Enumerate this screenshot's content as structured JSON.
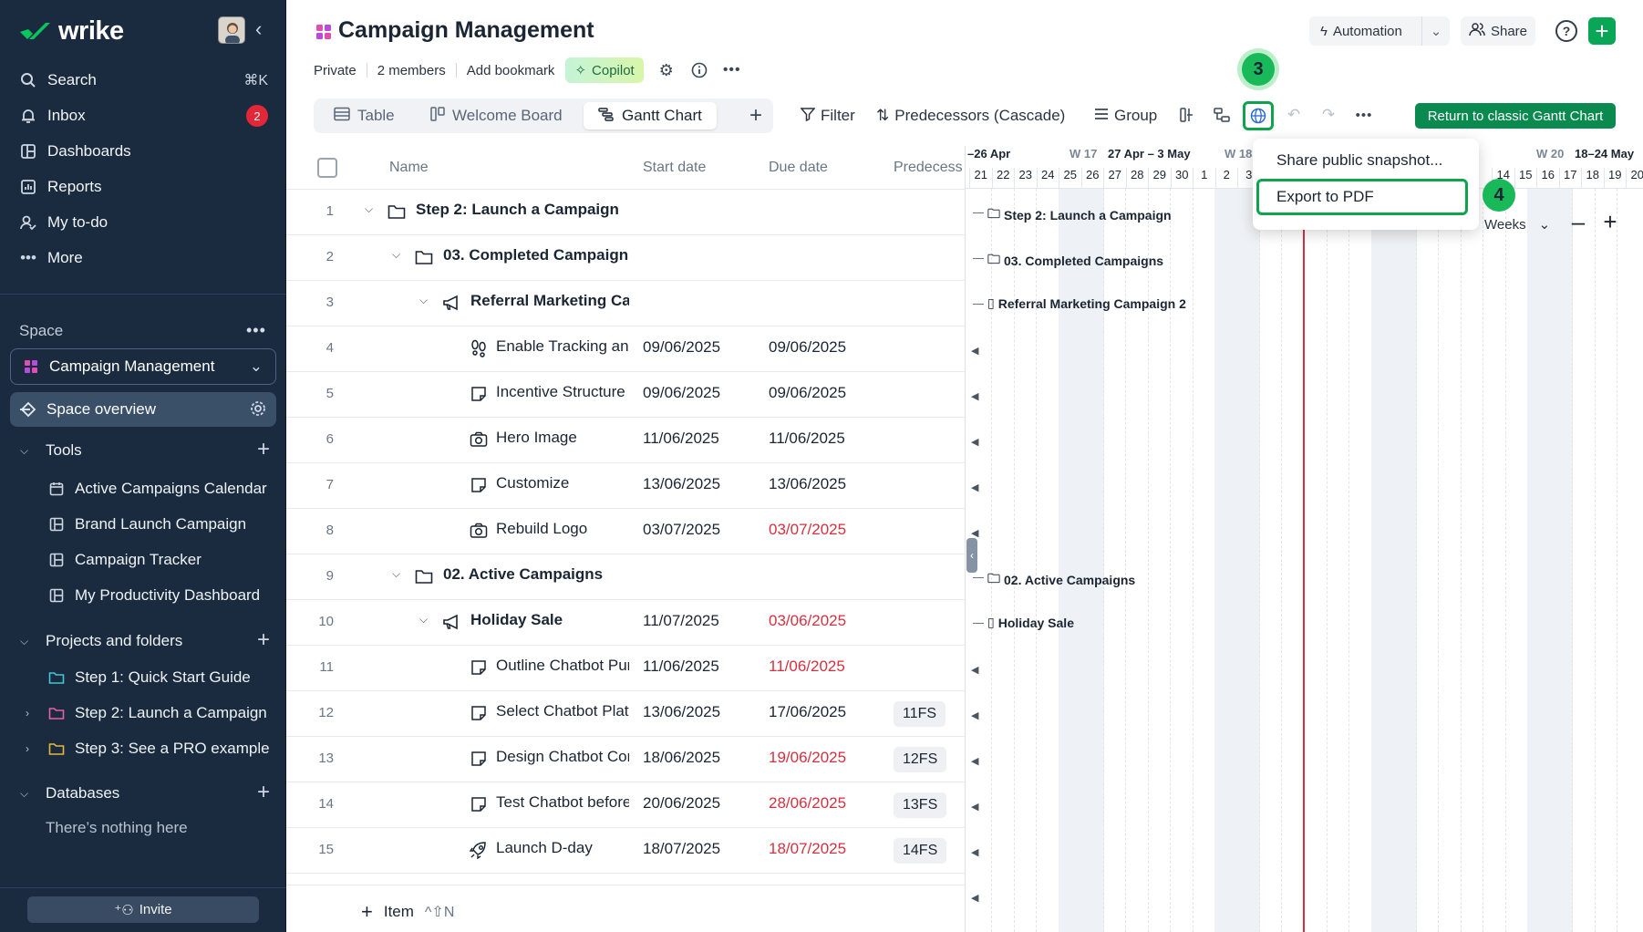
{
  "sidebar": {
    "brand": "wrike",
    "nav": [
      {
        "label": "Search",
        "shortcut": "⌘K"
      },
      {
        "label": "Inbox",
        "badge": "2"
      },
      {
        "label": "Dashboards"
      },
      {
        "label": "Reports"
      },
      {
        "label": "My to-do"
      },
      {
        "label": "More"
      }
    ],
    "space_label": "Space",
    "space_name": "Campaign Management",
    "space_overview": "Space overview",
    "tools_label": "Tools",
    "tools": [
      "Active Campaigns Calendar",
      "Brand Launch Campaign",
      "Campaign Tracker",
      "My Productivity Dashboard"
    ],
    "projects_label": "Projects and folders",
    "projects": [
      "Step 1: Quick Start Guide",
      "Step 2: Launch a Campaign",
      "Step 3: See a PRO example"
    ],
    "databases_label": "Databases",
    "databases_empty": "There’s nothing here",
    "invite": "Invite"
  },
  "header": {
    "title": "Campaign Management",
    "meta": [
      "Private",
      "2 members",
      "Add bookmark"
    ],
    "copilot": "Copilot",
    "automation": "Automation",
    "share": "Share",
    "help": "?"
  },
  "toolbar": {
    "tabs": [
      "Table",
      "Welcome Board",
      "Gantt Chart"
    ],
    "filter": "Filter",
    "predecessors": "Predecessors (Cascade)",
    "group": "Group",
    "classic": "Return to classic Gantt Chart"
  },
  "steps": {
    "three": "3",
    "four": "4"
  },
  "menu": {
    "items": [
      "Share public snapshot...",
      "Export to PDF"
    ]
  },
  "table": {
    "columns": [
      "Name",
      "Start date",
      "Due date",
      "Predecess"
    ],
    "rows": [
      {
        "num": "1",
        "name": "Step 2: Launch a Campaign",
        "start": "",
        "due": "",
        "pred": ""
      },
      {
        "num": "2",
        "name": "03. Completed Campaigns",
        "start": "",
        "due": "",
        "pred": ""
      },
      {
        "num": "3",
        "name": "Referral Marketing Campaign 2",
        "start": "",
        "due": "",
        "pred": ""
      },
      {
        "num": "4",
        "name": "Enable Tracking and Analytics",
        "start": "09/06/2025",
        "due": "09/06/2025",
        "pred": ""
      },
      {
        "num": "5",
        "name": "Incentive Structure",
        "start": "09/06/2025",
        "due": "09/06/2025",
        "pred": ""
      },
      {
        "num": "6",
        "name": "Hero Image",
        "start": "11/06/2025",
        "due": "11/06/2025",
        "pred": ""
      },
      {
        "num": "7",
        "name": "Customize",
        "start": "13/06/2025",
        "due": "13/06/2025",
        "pred": ""
      },
      {
        "num": "8",
        "name": "Rebuild Logo",
        "start": "03/07/2025",
        "due": "03/07/2025",
        "pred": ""
      },
      {
        "num": "9",
        "name": "02. Active Campaigns",
        "start": "",
        "due": "",
        "pred": ""
      },
      {
        "num": "10",
        "name": "Holiday Sale",
        "start": "11/07/2025",
        "due": "03/06/2025",
        "pred": ""
      },
      {
        "num": "11",
        "name": "Outline Chatbot Purpose",
        "start": "11/06/2025",
        "due": "11/06/2025",
        "pred": ""
      },
      {
        "num": "12",
        "name": "Select Chatbot Platform",
        "start": "13/06/2025",
        "due": "17/06/2025",
        "pred": "11FS"
      },
      {
        "num": "13",
        "name": "Design Chatbot Conversation",
        "start": "18/06/2025",
        "due": "19/06/2025",
        "pred": "12FS"
      },
      {
        "num": "14",
        "name": "Test Chatbot before Launch",
        "start": "20/06/2025",
        "due": "28/06/2025",
        "pred": "13FS"
      },
      {
        "num": "15",
        "name": "Launch D-day",
        "start": "18/07/2025",
        "due": "18/07/2025",
        "pred": "14FS"
      }
    ],
    "add_item": "Item",
    "add_item_shortcut": "^⇧N"
  },
  "gantt": {
    "weeks": [
      {
        "label": "–26 Apr"
      },
      {
        "label": "W 17"
      },
      {
        "label": "27 Apr – 3 May"
      },
      {
        "label": "W 18"
      },
      {
        "label": "W 20"
      },
      {
        "label": "18–24 May"
      }
    ],
    "days": [
      "21",
      "22",
      "23",
      "24",
      "25",
      "26",
      "27",
      "28",
      "29",
      "30",
      "1",
      "2",
      "3",
      "14",
      "15",
      "16",
      "17",
      "18",
      "19",
      "20"
    ],
    "labels": [
      "Step 2: Launch a Campaign",
      "03. Completed Campaigns",
      "Referral Marketing Campaign 2",
      "02. Active Campaigns",
      "Holiday Sale"
    ],
    "zoom": "Weeks"
  },
  "colors": {
    "sidebar_bg": "#1b2b3f",
    "accent_green": "#08a655",
    "late_red": "#d6303f",
    "highlight": "#0fa34d"
  }
}
